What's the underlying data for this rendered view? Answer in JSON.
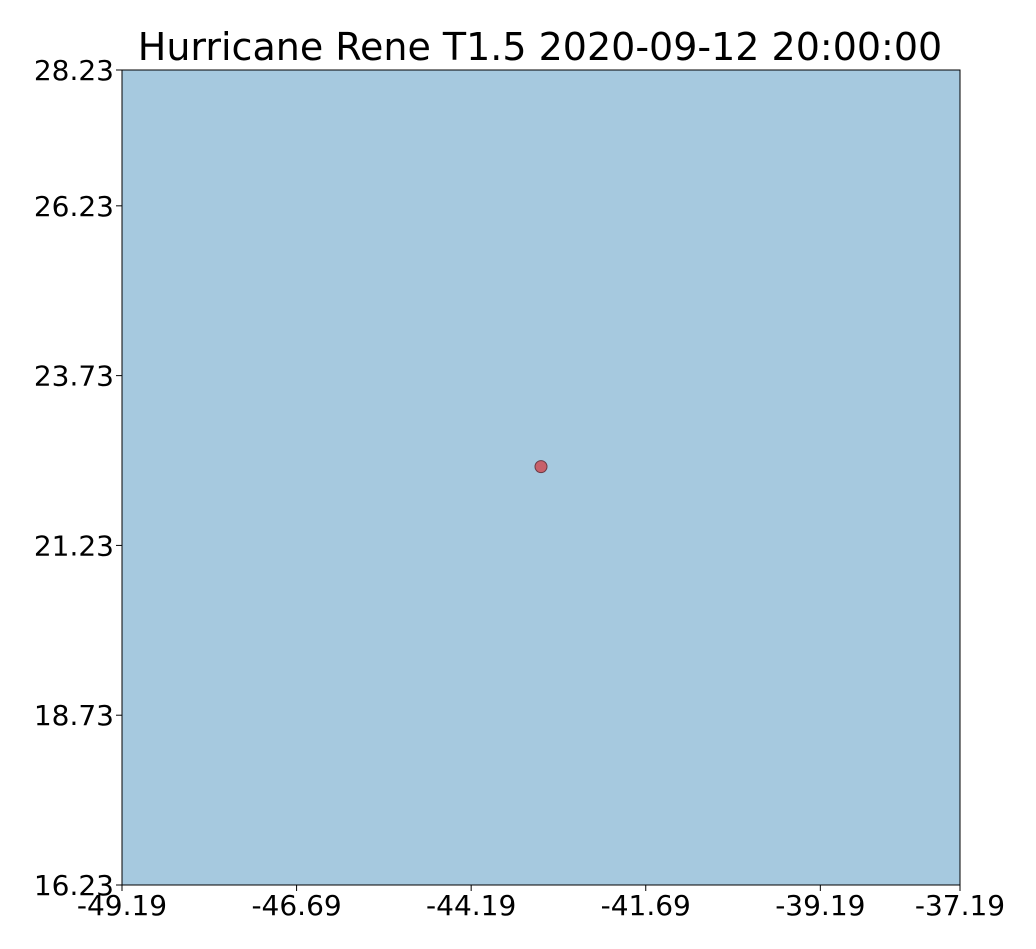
{
  "map": {
    "title": "Hurricane Rene T1.5 2020-09-12 20:00:00",
    "background_color": "#a6c9df",
    "frame_color": "#000000",
    "xlim": [
      -49.19,
      -37.19
    ],
    "ylim": [
      16.23,
      28.23
    ],
    "x_ticks": [
      {
        "value": -49.19,
        "label": "-49.19"
      },
      {
        "value": -46.69,
        "label": "-46.69"
      },
      {
        "value": -44.19,
        "label": "-44.19"
      },
      {
        "value": -41.69,
        "label": "-41.69"
      },
      {
        "value": -39.19,
        "label": "-39.19"
      },
      {
        "value": -37.19,
        "label": "-37.19"
      }
    ],
    "y_ticks": [
      {
        "value": 28.23,
        "label": "28.23"
      },
      {
        "value": 26.23,
        "label": "26.23"
      },
      {
        "value": 23.73,
        "label": "23.73"
      },
      {
        "value": 21.23,
        "label": "21.23"
      },
      {
        "value": 18.73,
        "label": "18.73"
      },
      {
        "value": 16.23,
        "label": "16.23"
      }
    ],
    "storm_marker": {
      "lon": -43.19,
      "lat": 22.39,
      "fill": "#c8606a",
      "stroke": "#6b3a45"
    }
  }
}
